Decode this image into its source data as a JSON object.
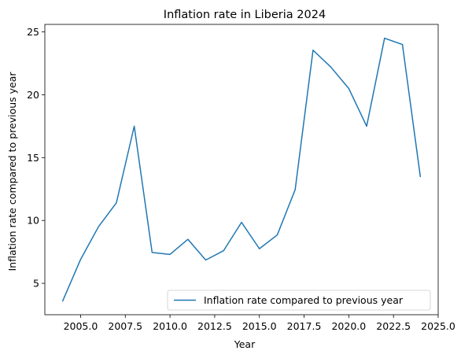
{
  "chart_data": {
    "type": "line",
    "title": "Inflation rate in Liberia 2024",
    "xlabel": "Year",
    "ylabel": "Inflation rate compared to previous year",
    "xlim": [
      2003.0,
      2025.0
    ],
    "ylim": [
      2.5,
      25.6
    ],
    "x_ticks": [
      2005.0,
      2007.5,
      2010.0,
      2012.5,
      2015.0,
      2017.5,
      2020.0,
      2022.5,
      2025.0
    ],
    "x_tick_labels": [
      "2005.0",
      "2007.5",
      "2010.0",
      "2012.5",
      "2015.0",
      "2017.5",
      "2020.0",
      "2022.5",
      "2025.0"
    ],
    "y_ticks": [
      5,
      10,
      15,
      20,
      25
    ],
    "y_tick_labels": [
      "5",
      "10",
      "15",
      "20",
      "25"
    ],
    "grid": false,
    "legend_position": "lower-right",
    "series": [
      {
        "name": "Inflation rate compared to previous year",
        "color": "#1f77b4",
        "x": [
          2004,
          2005,
          2006,
          2007,
          2008,
          2009,
          2010,
          2011,
          2012,
          2013,
          2014,
          2015,
          2016,
          2017,
          2018,
          2019,
          2020,
          2021,
          2022,
          2023,
          2024
        ],
        "y": [
          3.6,
          6.9,
          9.5,
          11.4,
          17.5,
          7.45,
          7.3,
          8.5,
          6.85,
          7.6,
          9.85,
          7.75,
          8.85,
          12.45,
          23.55,
          22.2,
          20.5,
          17.5,
          24.5,
          24.0,
          13.5
        ]
      }
    ]
  }
}
